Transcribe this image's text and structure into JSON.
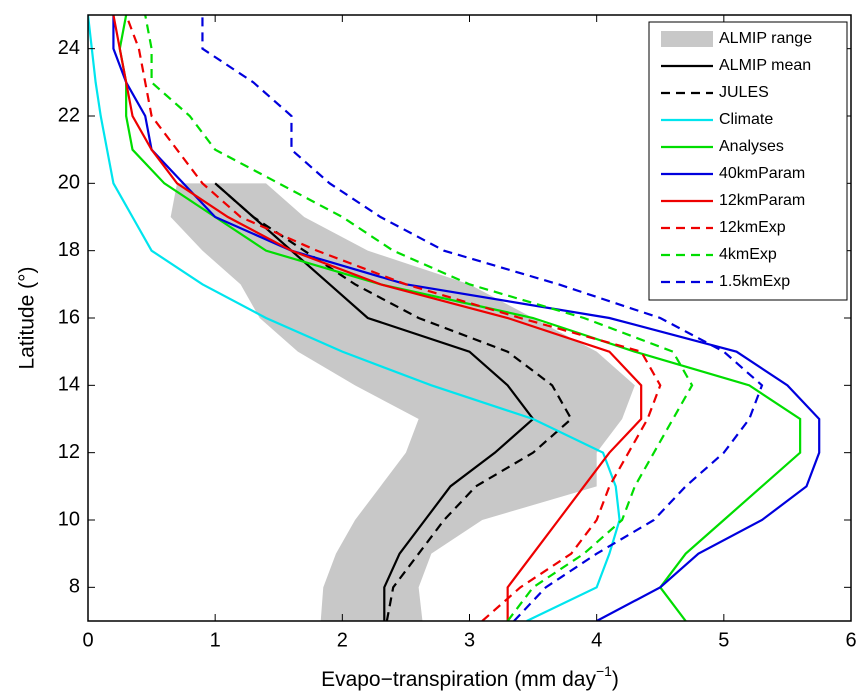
{
  "chart_data": {
    "type": "line",
    "xlabel": {
      "text": "Evapo−transpiration (mm day",
      "superscript": "−1",
      "close": ")"
    },
    "ylabel": "Latitude (°)",
    "xlim": [
      0,
      6
    ],
    "ylim": [
      7,
      25
    ],
    "xticks": [
      0,
      1,
      2,
      3,
      4,
      5,
      6
    ],
    "yticks": [
      8,
      10,
      12,
      14,
      16,
      18,
      20,
      22,
      24
    ],
    "legend": "upper right",
    "y": [
      7,
      8,
      9,
      10,
      11,
      12,
      13,
      14,
      15,
      16,
      17,
      18,
      19,
      20,
      21,
      22,
      23,
      24,
      25
    ],
    "band": {
      "name": "ALMIP range",
      "color": "#c8c8c8",
      "lower": [
        1.83,
        1.85,
        1.95,
        2.1,
        2.3,
        2.5,
        2.6,
        2.1,
        1.65,
        1.35,
        1.2,
        0.9,
        0.65,
        0.7,
        null,
        null,
        null,
        null,
        null
      ],
      "upper": [
        2.63,
        2.6,
        2.7,
        3.1,
        4.0,
        4.0,
        4.2,
        4.3,
        4.0,
        3.5,
        3.0,
        2.2,
        1.7,
        1.4,
        null,
        null,
        null,
        null,
        null
      ]
    },
    "series": [
      {
        "name": "ALMIP mean",
        "color": "#000000",
        "dash": false,
        "values": [
          2.33,
          2.33,
          2.45,
          2.65,
          2.85,
          3.2,
          3.5,
          3.3,
          3.0,
          2.2,
          1.9,
          1.6,
          1.3,
          1.0,
          null,
          null,
          null,
          null,
          null
        ]
      },
      {
        "name": "JULES",
        "color": "#000000",
        "dash": true,
        "values": [
          2.35,
          2.4,
          2.6,
          2.8,
          3.05,
          3.5,
          3.8,
          3.65,
          3.3,
          2.6,
          2.1,
          1.7,
          1.3,
          1.0,
          null,
          null,
          null,
          null,
          null
        ]
      },
      {
        "name": "Climate",
        "color": "#00e5ee",
        "dash": false,
        "values": [
          3.45,
          4.0,
          4.1,
          4.18,
          4.15,
          4.05,
          3.5,
          2.7,
          2.0,
          1.4,
          0.9,
          0.5,
          0.35,
          0.2,
          0.15,
          0.1,
          0.06,
          0.03,
          0.0
        ]
      },
      {
        "name": "Analyses",
        "color": "#00dd00",
        "dash": false,
        "values": [
          4.7,
          4.5,
          4.7,
          5.0,
          5.3,
          5.6,
          5.6,
          5.2,
          4.3,
          3.5,
          2.3,
          1.4,
          1.0,
          0.6,
          0.35,
          0.3,
          0.3,
          0.25,
          0.3
        ]
      },
      {
        "name": "40kmParam",
        "color": "#0000dd",
        "dash": false,
        "values": [
          4.0,
          4.5,
          4.8,
          5.3,
          5.65,
          5.75,
          5.75,
          5.5,
          5.1,
          4.1,
          2.5,
          1.6,
          1.0,
          0.75,
          0.5,
          0.45,
          0.3,
          0.2,
          0.2
        ]
      },
      {
        "name": "12kmParam",
        "color": "#ee0000",
        "dash": false,
        "values": [
          3.3,
          3.3,
          3.5,
          3.7,
          3.9,
          4.1,
          4.35,
          4.35,
          4.1,
          3.3,
          2.3,
          1.6,
          1.1,
          0.7,
          0.5,
          0.35,
          0.3,
          0.25,
          0.2
        ]
      },
      {
        "name": "12kmExp",
        "color": "#ee0000",
        "dash": true,
        "values": [
          3.1,
          3.4,
          3.8,
          4.0,
          4.1,
          4.25,
          4.4,
          4.5,
          4.35,
          3.4,
          2.5,
          1.8,
          1.2,
          0.9,
          0.7,
          0.5,
          0.45,
          0.4,
          0.3
        ]
      },
      {
        "name": "4kmExp",
        "color": "#00dd00",
        "dash": true,
        "values": [
          3.3,
          3.5,
          3.9,
          4.2,
          4.3,
          4.45,
          4.6,
          4.75,
          4.6,
          3.9,
          3.0,
          2.4,
          2.0,
          1.5,
          1.0,
          0.8,
          0.5,
          0.5,
          0.45
        ]
      },
      {
        "name": "1.5kmExp",
        "color": "#0000dd",
        "dash": true,
        "values": [
          3.35,
          3.6,
          4.0,
          4.45,
          4.7,
          5.0,
          5.2,
          5.3,
          5.0,
          4.5,
          3.7,
          2.8,
          2.3,
          1.9,
          1.6,
          1.6,
          1.3,
          0.9,
          0.9
        ]
      }
    ]
  }
}
